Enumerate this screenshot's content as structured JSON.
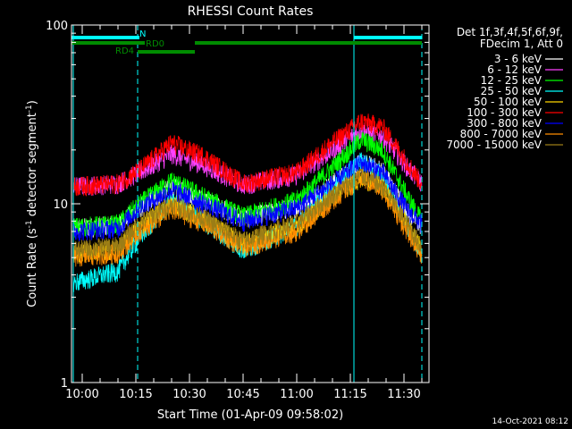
{
  "chart_data": {
    "type": "line",
    "title": "RHESSI Count Rates",
    "xlabel": "Start Time (01-Apr-09 09:58:02)",
    "ylabel_main": "Count Rate (s",
    "ylabel_sup": "-1",
    "ylabel_rest": " detector segment",
    "ylabel_sup2": "-1",
    "ylabel_end": ")",
    "y_scale": "log",
    "ylim": [
      1,
      100
    ],
    "y_ticks": [
      {
        "value": 1,
        "label": "1"
      },
      {
        "value": 10,
        "label": "10"
      },
      {
        "value": 100,
        "label": "100"
      }
    ],
    "xlim_minutes": [
      -3,
      97
    ],
    "x_ticks": [
      {
        "m": 0,
        "label": "10:00"
      },
      {
        "m": 15,
        "label": "10:15"
      },
      {
        "m": 30,
        "label": "10:30"
      },
      {
        "m": 45,
        "label": "10:45"
      },
      {
        "m": 60,
        "label": "11:00"
      },
      {
        "m": 75,
        "label": "11:15"
      },
      {
        "m": 90,
        "label": "11:30"
      }
    ],
    "legend_header": [
      "Det 1f,3f,4f,5f,6f,9f,",
      "FDecim 1, Att 0"
    ],
    "series": [
      {
        "name": "3 - 6 keV",
        "color": "#ffffff",
        "points": [
          [
            -3,
            7.3
          ],
          [
            10,
            7.6
          ],
          [
            16,
            9.5
          ],
          [
            25,
            12.5
          ],
          [
            34,
            10.5
          ],
          [
            45,
            8.3
          ],
          [
            60,
            9.6
          ],
          [
            70,
            13
          ],
          [
            78,
            17
          ],
          [
            84,
            15.5
          ],
          [
            91,
            9
          ],
          [
            95,
            7.5
          ]
        ]
      },
      {
        "name": "6 - 12 keV",
        "color": "#ff40ff",
        "points": [
          [
            -3,
            12.5
          ],
          [
            10,
            13
          ],
          [
            16,
            15
          ],
          [
            25,
            19
          ],
          [
            34,
            16.5
          ],
          [
            45,
            12.8
          ],
          [
            60,
            14.5
          ],
          [
            70,
            20
          ],
          [
            78,
            26
          ],
          [
            84,
            24
          ],
          [
            91,
            16
          ],
          [
            95,
            13
          ]
        ]
      },
      {
        "name": "12 - 25 keV",
        "color": "#00ff00",
        "points": [
          [
            -3,
            7.4
          ],
          [
            10,
            7.7
          ],
          [
            16,
            10
          ],
          [
            25,
            13.5
          ],
          [
            34,
            11
          ],
          [
            45,
            8.5
          ],
          [
            60,
            10.5
          ],
          [
            70,
            16
          ],
          [
            78,
            23
          ],
          [
            84,
            20
          ],
          [
            91,
            11
          ],
          [
            95,
            8
          ]
        ]
      },
      {
        "name": "25 - 50 keV",
        "color": "#00ffff",
        "points": [
          [
            -3,
            3.6
          ],
          [
            10,
            4.2
          ],
          [
            16,
            6.5
          ],
          [
            25,
            10.5
          ],
          [
            34,
            8
          ],
          [
            45,
            5.5
          ],
          [
            60,
            7.5
          ],
          [
            70,
            12.5
          ],
          [
            78,
            17.5
          ],
          [
            84,
            14.5
          ],
          [
            91,
            7.5
          ],
          [
            95,
            5.3
          ]
        ]
      },
      {
        "name": "50 - 100 keV",
        "color": "#ffd700",
        "points": [
          [
            -3,
            5.2
          ],
          [
            10,
            5.6
          ],
          [
            16,
            7.5
          ],
          [
            25,
            10
          ],
          [
            34,
            8.2
          ],
          [
            45,
            6
          ],
          [
            60,
            7.5
          ],
          [
            70,
            11
          ],
          [
            78,
            14
          ],
          [
            84,
            12.5
          ],
          [
            91,
            7.5
          ],
          [
            95,
            5.5
          ]
        ]
      },
      {
        "name": "100 - 300 keV",
        "color": "#ff0000",
        "points": [
          [
            -3,
            12.5
          ],
          [
            10,
            13
          ],
          [
            16,
            15.5
          ],
          [
            25,
            22
          ],
          [
            34,
            18.5
          ],
          [
            45,
            13
          ],
          [
            60,
            15
          ],
          [
            70,
            22
          ],
          [
            78,
            29
          ],
          [
            84,
            27
          ],
          [
            91,
            17
          ],
          [
            95,
            13
          ]
        ]
      },
      {
        "name": "300 - 800 keV",
        "color": "#0000ff",
        "points": [
          [
            -3,
            7
          ],
          [
            10,
            7.3
          ],
          [
            16,
            9.5
          ],
          [
            25,
            12
          ],
          [
            34,
            10
          ],
          [
            45,
            8
          ],
          [
            60,
            9.5
          ],
          [
            70,
            13
          ],
          [
            78,
            17
          ],
          [
            84,
            15
          ],
          [
            91,
            9.2
          ],
          [
            95,
            7.7
          ]
        ]
      },
      {
        "name": "800 - 7000 keV",
        "color": "#ff8c00",
        "points": [
          [
            -3,
            5
          ],
          [
            10,
            5.3
          ],
          [
            16,
            7
          ],
          [
            25,
            9.3
          ],
          [
            34,
            7.8
          ],
          [
            45,
            5.7
          ],
          [
            60,
            7
          ],
          [
            70,
            10.5
          ],
          [
            78,
            14
          ],
          [
            84,
            12
          ],
          [
            91,
            7
          ],
          [
            95,
            5.2
          ]
        ]
      },
      {
        "name": "7000 - 15000 keV",
        "color": "#9b7d16",
        "points": [
          [
            -3,
            5.5
          ],
          [
            10,
            5.8
          ],
          [
            16,
            7.8
          ],
          [
            25,
            10
          ],
          [
            34,
            8.3
          ],
          [
            45,
            6.2
          ],
          [
            60,
            7.8
          ],
          [
            70,
            11.2
          ],
          [
            78,
            14.5
          ],
          [
            84,
            12.5
          ],
          [
            91,
            7.6
          ],
          [
            95,
            5.7
          ]
        ]
      }
    ],
    "flags": [
      {
        "label": "N",
        "color": "#00ffff",
        "segments": [
          [
            -3,
            16
          ],
          [
            76,
            95
          ]
        ],
        "level": 0
      },
      {
        "label": "RD0",
        "color": "#008c00",
        "segments": [
          [
            -3,
            17.5
          ],
          [
            31.5,
            95
          ]
        ],
        "level": 1
      },
      {
        "label": "RD4",
        "color": "#008c00",
        "segments": [
          [
            15.5,
            31.5
          ]
        ],
        "level": 2
      }
    ],
    "vlines_solid_minutes": [
      -2.5,
      76
    ],
    "vlines_dashed_minutes": [
      15.5,
      95
    ],
    "grid": false,
    "legend_position": "right"
  },
  "timestamp": "14-Oct-2021 08:12"
}
